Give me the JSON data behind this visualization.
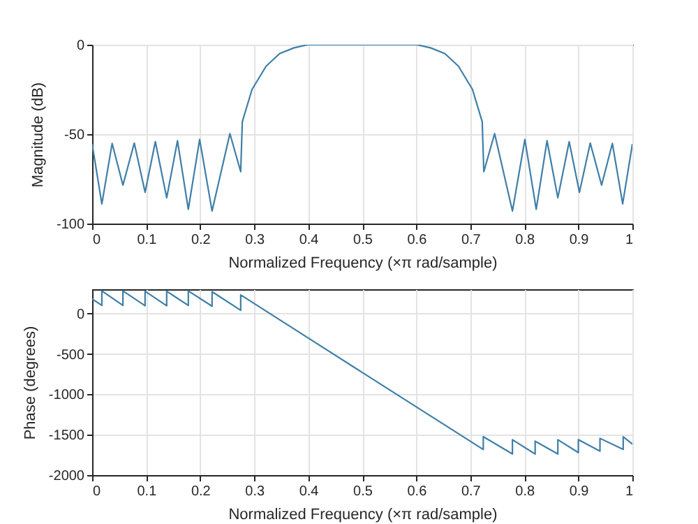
{
  "chart_data": [
    {
      "type": "line",
      "xlabel": "Normalized Frequency  (×π rad/sample)",
      "ylabel": "Magnitude (dB)",
      "xlim": [
        0,
        1
      ],
      "ylim": [
        -100,
        0
      ],
      "xticks": [
        0,
        0.1,
        0.2,
        0.3,
        0.4,
        0.5,
        0.6,
        0.7,
        0.8,
        0.9,
        1
      ],
      "yticks": [
        -100,
        -50,
        0
      ],
      "grid": true,
      "series": [
        {
          "color": "#3f7fa8",
          "x": [
            0,
            0.018,
            0.037,
            0.057,
            0.078,
            0.098,
            0.117,
            0.138,
            0.158,
            0.178,
            0.199,
            0.222,
            0.255,
            0.275,
            0.278,
            0.296,
            0.322,
            0.347,
            0.373,
            0.399,
            0.5,
            0.601,
            0.627,
            0.653,
            0.678,
            0.704,
            0.722,
            0.725,
            0.745,
            0.778,
            0.801,
            0.822,
            0.842,
            0.862,
            0.883,
            0.902,
            0.922,
            0.943,
            0.963,
            0.982,
            1
          ],
          "values": [
            -55.5,
            -89,
            -55.2,
            -78.5,
            -55,
            -82.5,
            -54.2,
            -85.6,
            -53.7,
            -92,
            -53,
            -93,
            -49.7,
            -71,
            -43,
            -25,
            -12,
            -5,
            -1.8,
            0,
            0,
            0,
            -1.8,
            -5,
            -12,
            -25,
            -43,
            -71,
            -49.7,
            -93,
            -53,
            -92,
            -53.7,
            -85.6,
            -54.2,
            -82.5,
            -55,
            -78.5,
            -55.2,
            -89,
            -55.5
          ]
        }
      ]
    },
    {
      "type": "line",
      "xlabel": "Normalized Frequency  (×π rad/sample)",
      "ylabel": "Phase (degrees)",
      "xlim": [
        0,
        1
      ],
      "ylim": [
        -2000,
        300
      ],
      "xticks": [
        0,
        0.1,
        0.2,
        0.3,
        0.4,
        0.5,
        0.6,
        0.7,
        0.8,
        0.9,
        1
      ],
      "yticks": [
        -2000,
        -1500,
        -1000,
        -500,
        0
      ],
      "grid": true,
      "series": [
        {
          "color": "#3f7fa8",
          "x": [
            0,
            0.018,
            0.018,
            0.057,
            0.057,
            0.098,
            0.098,
            0.138,
            0.138,
            0.178,
            0.178,
            0.222,
            0.222,
            0.275,
            0.275,
            0.5,
            0.724,
            0.724,
            0.778,
            0.778,
            0.82,
            0.82,
            0.862,
            0.862,
            0.9,
            0.9,
            0.94,
            0.94,
            0.983,
            0.983,
            1
          ],
          "values": [
            180,
            100,
            280,
            100,
            280,
            95,
            275,
            95,
            275,
            100,
            280,
            90,
            270,
            40,
            230,
            -730,
            -1683,
            -1525,
            -1739,
            -1562,
            -1739,
            -1580,
            -1739,
            -1562,
            -1721,
            -1562,
            -1703,
            -1545,
            -1683,
            -1526,
            -1616
          ]
        }
      ]
    }
  ]
}
